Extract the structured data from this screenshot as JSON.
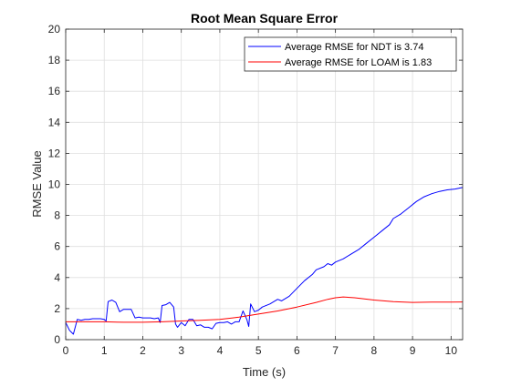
{
  "chart_data": {
    "type": "line",
    "title": "Root Mean Square Error",
    "xlabel": "Time (s)",
    "ylabel": "RMSE Value",
    "xlim": [
      0,
      10.3
    ],
    "ylim": [
      0,
      20
    ],
    "xticks": [
      0,
      1,
      2,
      3,
      4,
      5,
      6,
      7,
      8,
      9,
      10
    ],
    "yticks": [
      0,
      2,
      4,
      6,
      8,
      10,
      12,
      14,
      16,
      18,
      20
    ],
    "grid": true,
    "legend_position": "top-right",
    "series": [
      {
        "name": "Average RMSE for NDT is 3.74",
        "color": "#0000ff",
        "points": [
          [
            0.0,
            1.1
          ],
          [
            0.1,
            0.6
          ],
          [
            0.2,
            0.35
          ],
          [
            0.3,
            1.3
          ],
          [
            0.4,
            1.25
          ],
          [
            0.5,
            1.3
          ],
          [
            0.6,
            1.3
          ],
          [
            0.7,
            1.35
          ],
          [
            0.8,
            1.35
          ],
          [
            0.9,
            1.35
          ],
          [
            1.0,
            1.3
          ],
          [
            1.05,
            1.2
          ],
          [
            1.1,
            2.45
          ],
          [
            1.2,
            2.55
          ],
          [
            1.3,
            2.4
          ],
          [
            1.4,
            1.8
          ],
          [
            1.5,
            1.95
          ],
          [
            1.6,
            1.95
          ],
          [
            1.7,
            1.95
          ],
          [
            1.8,
            1.4
          ],
          [
            1.9,
            1.45
          ],
          [
            2.0,
            1.4
          ],
          [
            2.1,
            1.4
          ],
          [
            2.2,
            1.4
          ],
          [
            2.3,
            1.35
          ],
          [
            2.4,
            1.4
          ],
          [
            2.45,
            1.1
          ],
          [
            2.5,
            2.2
          ],
          [
            2.6,
            2.25
          ],
          [
            2.7,
            2.4
          ],
          [
            2.8,
            2.1
          ],
          [
            2.85,
            1.0
          ],
          [
            2.9,
            0.8
          ],
          [
            3.0,
            1.1
          ],
          [
            3.1,
            0.9
          ],
          [
            3.2,
            1.3
          ],
          [
            3.3,
            1.3
          ],
          [
            3.4,
            0.9
          ],
          [
            3.5,
            0.95
          ],
          [
            3.6,
            0.8
          ],
          [
            3.7,
            0.8
          ],
          [
            3.8,
            0.7
          ],
          [
            3.9,
            1.05
          ],
          [
            4.0,
            1.1
          ],
          [
            4.1,
            1.1
          ],
          [
            4.2,
            1.15
          ],
          [
            4.3,
            1.0
          ],
          [
            4.4,
            1.15
          ],
          [
            4.5,
            1.15
          ],
          [
            4.6,
            1.85
          ],
          [
            4.7,
            1.3
          ],
          [
            4.75,
            0.85
          ],
          [
            4.8,
            2.3
          ],
          [
            4.9,
            1.8
          ],
          [
            5.0,
            1.9
          ],
          [
            5.1,
            2.1
          ],
          [
            5.3,
            2.3
          ],
          [
            5.5,
            2.6
          ],
          [
            5.6,
            2.5
          ],
          [
            5.8,
            2.8
          ],
          [
            6.0,
            3.3
          ],
          [
            6.2,
            3.8
          ],
          [
            6.4,
            4.2
          ],
          [
            6.5,
            4.5
          ],
          [
            6.7,
            4.7
          ],
          [
            6.8,
            4.9
          ],
          [
            6.9,
            4.8
          ],
          [
            7.0,
            5.0
          ],
          [
            7.2,
            5.2
          ],
          [
            7.4,
            5.5
          ],
          [
            7.6,
            5.8
          ],
          [
            7.8,
            6.2
          ],
          [
            8.0,
            6.6
          ],
          [
            8.2,
            7.0
          ],
          [
            8.4,
            7.4
          ],
          [
            8.5,
            7.8
          ],
          [
            8.7,
            8.1
          ],
          [
            8.9,
            8.5
          ],
          [
            9.1,
            8.9
          ],
          [
            9.3,
            9.2
          ],
          [
            9.5,
            9.4
          ],
          [
            9.7,
            9.55
          ],
          [
            9.9,
            9.65
          ],
          [
            10.1,
            9.7
          ],
          [
            10.3,
            9.8
          ]
        ]
      },
      {
        "name": "Average RMSE for LOAM is 1.83",
        "color": "#ff0000",
        "points": [
          [
            0.0,
            1.15
          ],
          [
            0.5,
            1.15
          ],
          [
            1.0,
            1.15
          ],
          [
            1.5,
            1.12
          ],
          [
            2.0,
            1.12
          ],
          [
            2.5,
            1.15
          ],
          [
            3.0,
            1.2
          ],
          [
            3.5,
            1.25
          ],
          [
            4.0,
            1.3
          ],
          [
            4.5,
            1.45
          ],
          [
            5.0,
            1.65
          ],
          [
            5.5,
            1.85
          ],
          [
            6.0,
            2.1
          ],
          [
            6.5,
            2.4
          ],
          [
            6.8,
            2.6
          ],
          [
            7.0,
            2.7
          ],
          [
            7.2,
            2.75
          ],
          [
            7.5,
            2.7
          ],
          [
            8.0,
            2.55
          ],
          [
            8.5,
            2.45
          ],
          [
            9.0,
            2.4
          ],
          [
            9.5,
            2.42
          ],
          [
            10.0,
            2.42
          ],
          [
            10.3,
            2.43
          ]
        ]
      }
    ]
  }
}
